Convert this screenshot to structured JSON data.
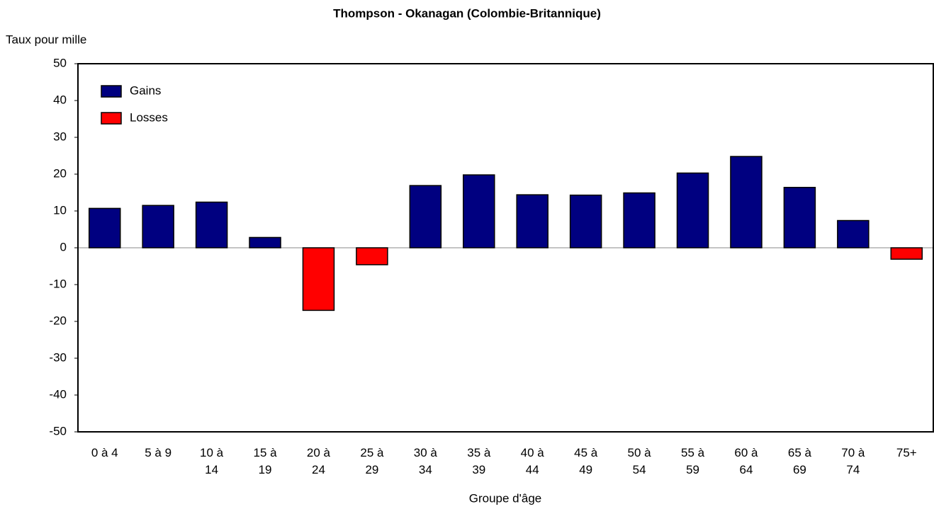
{
  "chart_data": {
    "type": "bar",
    "title": "Thompson - Okanagan (Colombie-Britannique)",
    "y_label": "Taux pour mille",
    "x_label": "Groupe d'âge",
    "categories": [
      "0 à 4",
      "5 à 9",
      "10 à 14",
      "15 à 19",
      "20 à 24",
      "25 à 29",
      "30 à 34",
      "35 à 39",
      "40 à 44",
      "45 à 49",
      "50 à 54",
      "55 à 59",
      "60 à 64",
      "65 à 69",
      "70 à 74",
      "75+"
    ],
    "series": [
      {
        "name": "Gains",
        "color": "#000080",
        "values": [
          10.7,
          11.5,
          12.4,
          2.8,
          null,
          null,
          16.9,
          19.8,
          14.4,
          14.3,
          14.9,
          20.3,
          24.8,
          16.4,
          7.4,
          null
        ]
      },
      {
        "name": "Losses",
        "color": "#ff0000",
        "values": [
          null,
          null,
          null,
          null,
          -17,
          -4.6,
          null,
          null,
          null,
          null,
          null,
          null,
          null,
          null,
          null,
          -3.1
        ]
      }
    ],
    "ylim": [
      -50,
      50
    ],
    "yticks": [
      -50,
      -40,
      -30,
      -20,
      -10,
      0,
      10,
      20,
      30,
      40,
      50
    ],
    "legend": "upper left",
    "grid": false
  }
}
